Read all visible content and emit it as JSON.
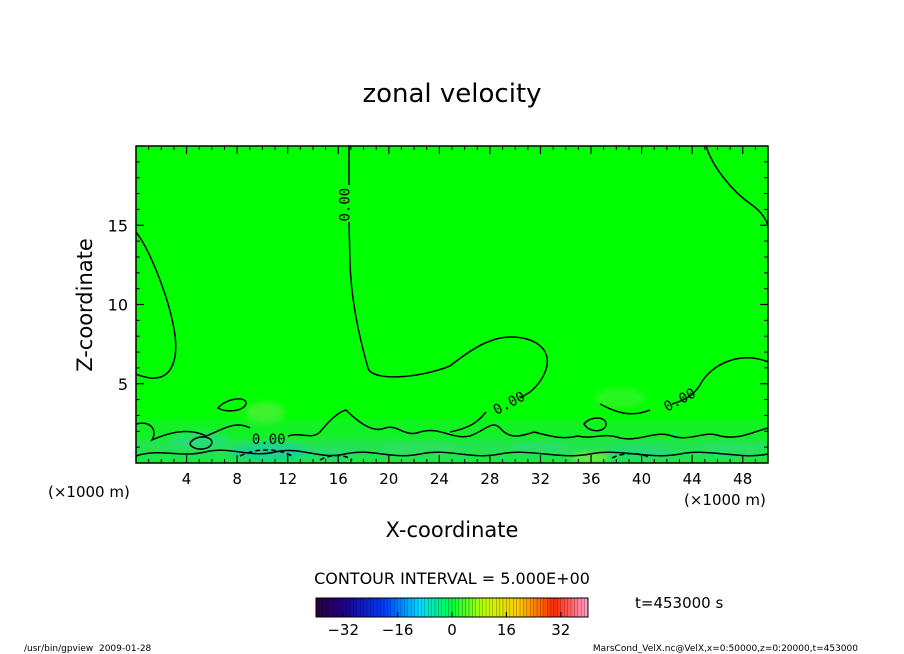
{
  "chart_data": {
    "type": "contour",
    "title": "zonal velocity",
    "xlabel": "X-coordinate",
    "ylabel": "Z-coordinate",
    "x_units_left": "(×1000 m)",
    "x_units_right": "(×1000 m)",
    "xlim": [
      0,
      50
    ],
    "ylim": [
      0,
      20
    ],
    "x_ticks": [
      4,
      8,
      12,
      16,
      20,
      24,
      28,
      32,
      36,
      40,
      44,
      48
    ],
    "y_ticks": [
      5,
      10,
      15
    ],
    "contour_labels": [
      {
        "text": "0.00",
        "x": 16.5,
        "y": 16.3,
        "rotate": -90
      },
      {
        "text": "0.00",
        "x": 10.5,
        "y": 1.5,
        "rotate": 0
      },
      {
        "text": "0.00",
        "x": 29.5,
        "y": 3.8,
        "rotate": -28
      },
      {
        "text": "0.00",
        "x": 43.0,
        "y": 4.0,
        "rotate": -28
      }
    ],
    "contour_interval": "CONTOUR INTERVAL = 5.000E+00",
    "colorbar": {
      "range": [
        -40,
        40
      ],
      "ticks": [
        -32,
        -16,
        0,
        16,
        32
      ]
    },
    "time_label": "t=453000 s"
  },
  "footer": {
    "left": "/usr/bin/gpview  2009-01-28",
    "right": "MarsCond_VelX.nc@VelX,x=0:50000,z=0:20000,t=453000"
  },
  "colors": {
    "field_background": "#00ff00",
    "contour_line": "#000000"
  }
}
